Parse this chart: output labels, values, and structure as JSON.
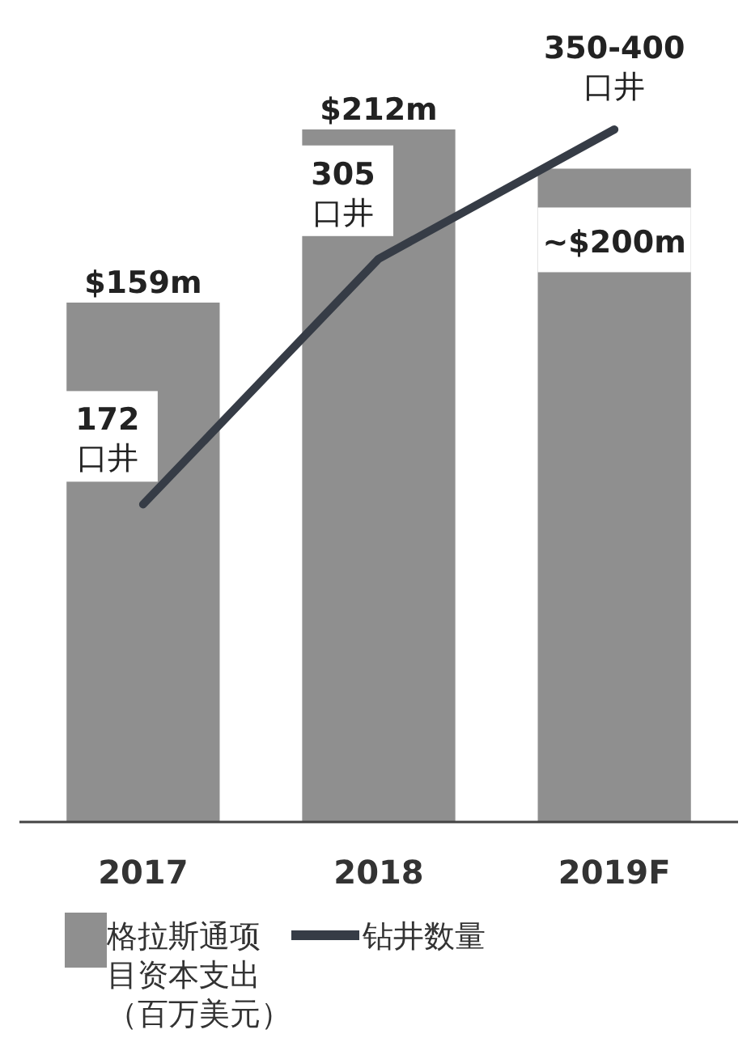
{
  "chart_data": {
    "type": "bar",
    "categories": [
      "2017",
      "2018",
      "2019F"
    ],
    "series": [
      {
        "name": "格拉斯通项目资本支出（百万美元）",
        "color": "#8f8f8f",
        "values": [
          159,
          212,
          200
        ],
        "value_labels": [
          "$159m",
          "$212m",
          "~$200m"
        ]
      },
      {
        "name": "钻井数量",
        "type": "line",
        "axis": "y2",
        "color": "#363c46",
        "values": [
          172,
          305,
          375
        ],
        "value_labels": [
          "172\n口井",
          "305\n口井",
          "350-400\n口井"
        ]
      }
    ],
    "tick_labels": "x",
    "legend": "bottom",
    "marker": "none",
    "line_style": "solid"
  }
}
